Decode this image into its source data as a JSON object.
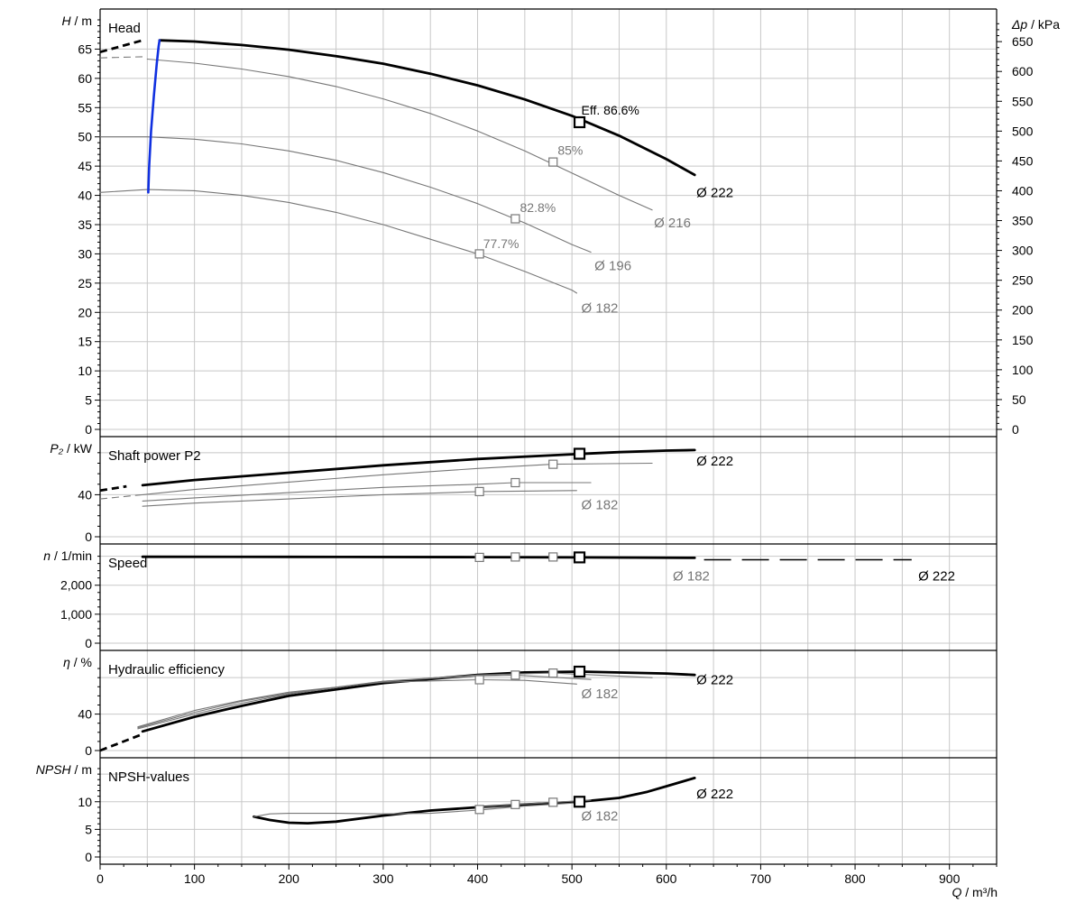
{
  "x_axis": {
    "label_var": "Q",
    "label_unit": " / m³/h",
    "ticks": [
      0,
      100,
      200,
      300,
      400,
      500,
      600,
      700,
      800,
      900
    ],
    "range": [
      0,
      950
    ]
  },
  "colors": {
    "main_curve": "#000000",
    "other_curves": "#777777",
    "operating_limit": "#1030e0",
    "grid": "#c8c8c8"
  },
  "chart_data": [
    {
      "type": "line",
      "panel": "head",
      "title": "Head",
      "ylabel_var": "H",
      "ylabel_unit": " / m",
      "ylim": [
        0,
        70
      ],
      "yticks": [
        0,
        5,
        10,
        15,
        20,
        25,
        30,
        35,
        40,
        45,
        50,
        55,
        60,
        65
      ],
      "y2label_var": "Δp",
      "y2label_unit": " / kPa",
      "y2lim": [
        0,
        686.5
      ],
      "y2ticks": [
        0,
        50,
        100,
        150,
        200,
        250,
        300,
        350,
        400,
        450,
        500,
        550,
        600,
        650
      ],
      "series": [
        {
          "name": "Ø 222",
          "main": true,
          "lead_in": [
            [
              0,
              64.5
            ],
            [
              45,
              66.5
            ]
          ],
          "x": [
            63,
            100,
            150,
            200,
            250,
            300,
            350,
            400,
            450,
            500,
            550,
            600,
            630
          ],
          "y": [
            66.5,
            66.3,
            65.7,
            64.9,
            63.8,
            62.5,
            60.8,
            58.8,
            56.4,
            53.6,
            50.2,
            46.2,
            43.5
          ],
          "label_at": [
            630,
            40.5
          ],
          "marker": [
            508,
            52.5
          ]
        },
        {
          "name": "Ø 216",
          "main": false,
          "lead_in": [
            [
              0,
              63.5
            ],
            [
              45,
              63.7
            ]
          ],
          "x": [
            50,
            100,
            150,
            200,
            250,
            300,
            350,
            400,
            450,
            500,
            550,
            585
          ],
          "y": [
            63.3,
            62.6,
            61.6,
            60.3,
            58.6,
            56.5,
            54.0,
            51.0,
            47.6,
            43.8,
            40.0,
            37.5
          ],
          "label_at": [
            585,
            35.3
          ],
          "marker": [
            480,
            45.7
          ]
        },
        {
          "name": "Ø 196",
          "main": false,
          "lead_in": [
            [
              0,
              50.0
            ]
          ],
          "x": [
            0,
            50,
            100,
            150,
            200,
            250,
            300,
            350,
            400,
            450,
            500,
            520
          ],
          "y": [
            50.0,
            50.0,
            49.6,
            48.8,
            47.6,
            46.0,
            43.9,
            41.4,
            38.6,
            35.3,
            31.6,
            30.3
          ],
          "label_at": [
            522,
            28.0
          ],
          "marker": [
            440,
            36.0
          ]
        },
        {
          "name": "Ø 182",
          "main": false,
          "lead_in": [
            [
              0,
              40.5
            ]
          ],
          "x": [
            0,
            50,
            100,
            150,
            200,
            250,
            300,
            350,
            400,
            450,
            500,
            505
          ],
          "y": [
            40.5,
            41.0,
            40.8,
            40.0,
            38.8,
            37.1,
            35.0,
            32.5,
            30.0,
            27.0,
            23.8,
            23.3
          ],
          "label_at": [
            508,
            20.7
          ],
          "marker": [
            402,
            30.0
          ]
        },
        {
          "name": "operating limit",
          "main": false,
          "limit": true,
          "x": [
            51,
            52,
            54,
            57,
            60,
            62,
            63
          ],
          "y": [
            40.5,
            45.0,
            51.0,
            57.0,
            62.5,
            65.5,
            66.5
          ]
        }
      ],
      "annotations": [
        {
          "text": "Eff.  86.6%",
          "main": true,
          "at": [
            508,
            54.6
          ]
        },
        {
          "text": "85%",
          "main": false,
          "at": [
            483,
            47.7
          ]
        },
        {
          "text": "82.8%",
          "main": false,
          "at": [
            443,
            37.9
          ]
        },
        {
          "text": "77.7%",
          "main": false,
          "at": [
            404,
            31.8
          ]
        }
      ]
    },
    {
      "type": "line",
      "panel": "power",
      "title": "Shaft power P2",
      "ylabel_var": "P₂",
      "ylabel_unit": " / kW",
      "ylim": [
        0,
        85
      ],
      "yticks": [
        0,
        40
      ],
      "minor_step": 10,
      "series": [
        {
          "name": "Ø 222",
          "main": true,
          "lead_in": [
            [
              0,
              44
            ],
            [
              28,
              48
            ]
          ],
          "x": [
            45,
            100,
            200,
            300,
            400,
            500,
            550,
            600,
            630
          ],
          "y": [
            49,
            54,
            61,
            68,
            74,
            78.5,
            80.5,
            82,
            82.5
          ],
          "label_at": [
            630,
            72
          ],
          "marker": [
            508,
            79
          ]
        },
        {
          "name": "",
          "main": false,
          "lead_in": [
            [
              0,
              36
            ],
            [
              45,
              40
            ]
          ],
          "x": [
            45,
            100,
            200,
            300,
            400,
            480,
            585
          ],
          "y": [
            40,
            45,
            52,
            59,
            65,
            69,
            70
          ],
          "marker": [
            480,
            69
          ]
        },
        {
          "name": "",
          "main": false,
          "lead_in": [
            [
              0,
              31
            ]
          ],
          "x": [
            45,
            100,
            200,
            300,
            400,
            440,
            520
          ],
          "y": [
            34,
            37,
            42,
            47,
            50,
            51.5,
            51.5
          ],
          "marker": [
            440,
            51.5
          ]
        },
        {
          "name": "Ø 182",
          "main": false,
          "lead_in": [
            [
              0,
              28
            ]
          ],
          "x": [
            45,
            100,
            200,
            300,
            402,
            505
          ],
          "y": [
            29,
            32,
            36,
            40,
            43,
            44
          ],
          "label_at": [
            508,
            30.5
          ],
          "marker": [
            402,
            43
          ]
        }
      ]
    },
    {
      "type": "line",
      "panel": "speed",
      "title": "Speed",
      "ylabel_var": "n",
      "ylabel_unit": " / 1/min",
      "ylim": [
        0,
        3050
      ],
      "yticks": [
        0,
        1000,
        2000
      ],
      "ytick_labels": [
        "0",
        "1,000",
        "2,000"
      ],
      "minor_step": 250,
      "series": [
        {
          "name": "Ø 182",
          "main": false,
          "x": [
            45,
            200,
            400,
            505,
            630
          ],
          "y": [
            2965,
            2960,
            2950,
            2945,
            2935
          ],
          "label_at": [
            605,
            2320
          ],
          "markers": [
            [
              402,
              2960
            ],
            [
              440,
              2975
            ],
            [
              480,
              2975
            ]
          ]
        },
        {
          "name": "Ø 222",
          "main": true,
          "x": [
            45,
            200,
            400,
            508,
            630
          ],
          "y": [
            2980,
            2978,
            2968,
            2960,
            2945
          ],
          "dashed_ext": [
            [
              640,
              2880
            ],
            [
              860,
              2880
            ]
          ],
          "label_at": [
            865,
            2320
          ],
          "marker": [
            508,
            2960
          ]
        }
      ]
    },
    {
      "type": "line",
      "panel": "efficiency",
      "title": "Hydraulic efficiency",
      "ylabel_var": "η",
      "ylabel_unit": " / %",
      "ylim": [
        0,
        98
      ],
      "yticks": [
        0,
        40
      ],
      "minor_step": 10,
      "series": [
        {
          "name": "Ø 222",
          "main": true,
          "lead_in": [
            [
              0,
              0
            ],
            [
              45,
              18
            ]
          ],
          "x": [
            45,
            100,
            150,
            200,
            300,
            400,
            450,
            508,
            600,
            630
          ],
          "y": [
            21,
            37,
            49,
            60,
            74,
            83,
            85.7,
            86.6,
            84.5,
            83
          ],
          "label_at": [
            630,
            77.5
          ],
          "marker": [
            508,
            86.6
          ]
        },
        {
          "name": "",
          "main": false,
          "lead_in": [
            [
              0,
              2
            ]
          ],
          "x": [
            40,
            100,
            150,
            200,
            300,
            400,
            480,
            585
          ],
          "y": [
            24,
            40,
            52,
            62,
            76,
            83,
            85,
            80
          ],
          "marker": [
            480,
            85
          ]
        },
        {
          "name": "",
          "main": false,
          "x": [
            40,
            100,
            150,
            200,
            300,
            400,
            440,
            520
          ],
          "y": [
            25,
            42,
            54,
            63,
            76,
            82,
            82.8,
            78
          ],
          "marker": [
            440,
            82.8
          ]
        },
        {
          "name": "Ø 182",
          "main": false,
          "x": [
            40,
            100,
            150,
            200,
            300,
            402,
            450,
            505
          ],
          "y": [
            26,
            44,
            55,
            64,
            75,
            77.7,
            77,
            73
          ],
          "label_at": [
            508,
            62.3
          ],
          "marker": [
            402,
            77.7
          ]
        }
      ]
    },
    {
      "type": "line",
      "panel": "npsh",
      "title": "NPSH-values",
      "ylabel_var": "NPSH",
      "ylabel_unit": " / m",
      "ylim": [
        0,
        16
      ],
      "yticks": [
        0,
        5,
        10
      ],
      "minor_step": 1,
      "series": [
        {
          "name": "Ø 222",
          "main": true,
          "x": [
            163,
            180,
            200,
            220,
            250,
            300,
            350,
            400,
            450,
            508,
            550,
            580,
            600,
            630
          ],
          "y": [
            7.3,
            6.7,
            6.2,
            6.1,
            6.4,
            7.5,
            8.4,
            9.0,
            9.5,
            10.0,
            10.7,
            11.8,
            12.8,
            14.3
          ],
          "label_at": [
            630,
            11.4
          ],
          "marker": [
            508,
            10.0
          ]
        },
        {
          "name": "",
          "main": false,
          "x": [
            400,
            440,
            480,
            520
          ],
          "y": [
            9.0,
            9.5,
            9.9,
            10.3
          ],
          "markers": [
            [
              440,
              9.5
            ],
            [
              480,
              9.9
            ]
          ]
        },
        {
          "name": "Ø 182",
          "main": false,
          "x": [
            163,
            180,
            200,
            250,
            300,
            350,
            402,
            450,
            505
          ],
          "y": [
            7.3,
            7.8,
            7.9,
            7.9,
            7.8,
            7.9,
            8.5,
            9.2,
            9.8
          ],
          "label_at": [
            508,
            7.4
          ],
          "marker": [
            402,
            8.6
          ]
        }
      ]
    }
  ]
}
